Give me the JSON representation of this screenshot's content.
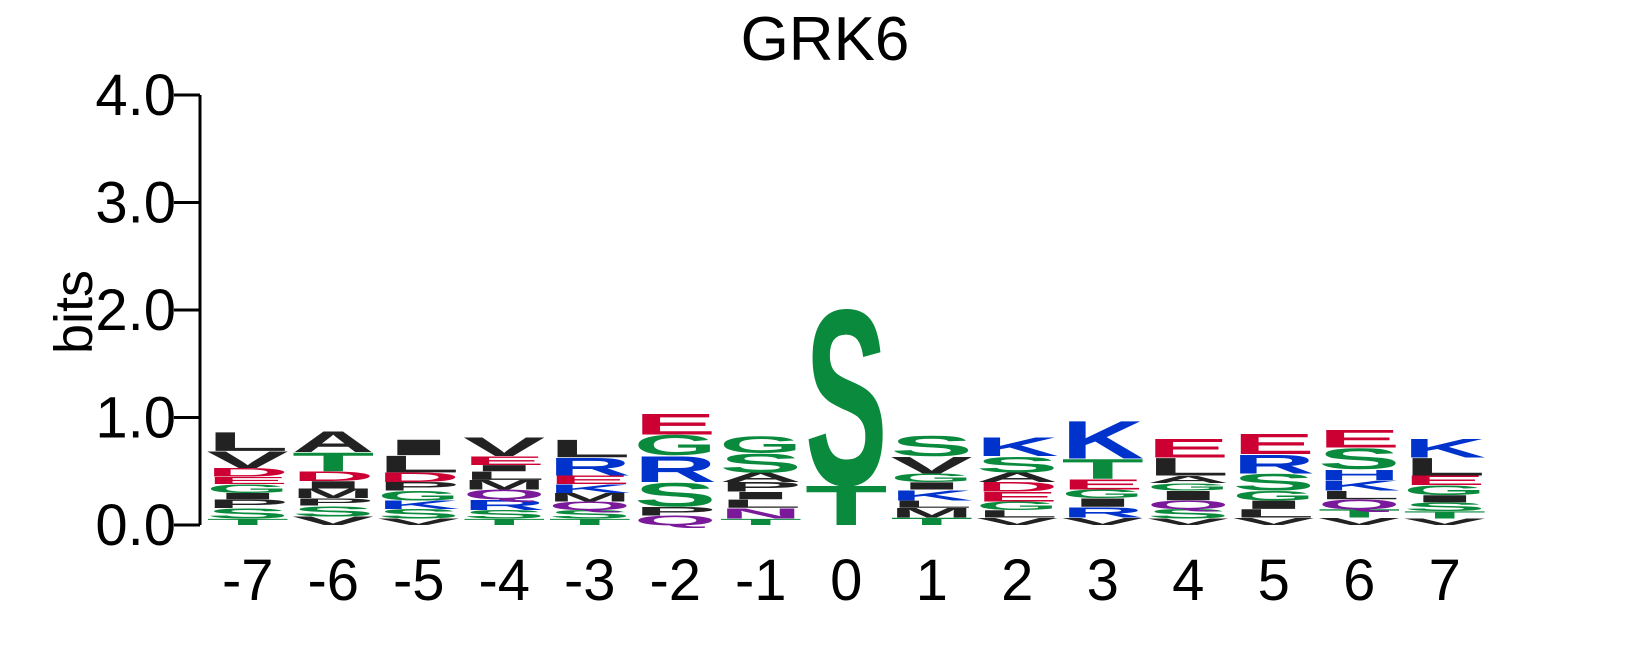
{
  "chart_data": {
    "type": "sequence-logo",
    "title": "GRK6",
    "ylabel": "bits",
    "ylim": [
      0,
      4
    ],
    "yticks": [
      "0.0",
      "1.0",
      "2.0",
      "3.0",
      "4.0"
    ],
    "yticks_values": [
      0,
      1,
      2,
      3,
      4
    ],
    "positions": [
      "-7",
      "-6",
      "-5",
      "-4",
      "-3",
      "-2",
      "-1",
      "0",
      "1",
      "2",
      "3",
      "4",
      "5",
      "6",
      "7"
    ],
    "colors": {
      "hydrophobic": "#222222",
      "polar": "#0a8a3c",
      "basic": "#0033cc",
      "acidic": "#cc0033",
      "amide": "#7a1a9a"
    },
    "columns": [
      [
        [
          "T",
          0.06
        ],
        [
          "S",
          0.1
        ],
        [
          "P",
          0.08
        ],
        [
          "I",
          0.06
        ],
        [
          "G",
          0.08
        ],
        [
          "E",
          0.07
        ],
        [
          "D",
          0.08
        ],
        [
          "V",
          0.16
        ],
        [
          "L",
          0.18
        ]
      ],
      [
        [
          "V",
          0.08
        ],
        [
          "S",
          0.1
        ],
        [
          "P",
          0.07
        ],
        [
          "M",
          0.09
        ],
        [
          "I",
          0.07
        ],
        [
          "D",
          0.09
        ],
        [
          "T",
          0.18
        ],
        [
          "A",
          0.2
        ]
      ],
      [
        [
          "V",
          0.06
        ],
        [
          "S",
          0.09
        ],
        [
          "K",
          0.08
        ],
        [
          "G",
          0.09
        ],
        [
          "P",
          0.08
        ],
        [
          "D",
          0.09
        ],
        [
          "L",
          0.16
        ],
        [
          "I",
          0.15
        ]
      ],
      [
        [
          "T",
          0.06
        ],
        [
          "S",
          0.08
        ],
        [
          "R",
          0.1
        ],
        [
          "Q",
          0.09
        ],
        [
          "M",
          0.09
        ],
        [
          "L",
          0.08
        ],
        [
          "I",
          0.06
        ],
        [
          "E",
          0.08
        ],
        [
          "V",
          0.18
        ]
      ],
      [
        [
          "T",
          0.06
        ],
        [
          "S",
          0.08
        ],
        [
          "Q",
          0.08
        ],
        [
          "M",
          0.08
        ],
        [
          "K",
          0.08
        ],
        [
          "E",
          0.08
        ],
        [
          "R",
          0.17
        ],
        [
          "L",
          0.17
        ]
      ],
      [
        [
          "Q",
          0.09
        ],
        [
          "P",
          0.08
        ],
        [
          "S",
          0.23
        ],
        [
          "R",
          0.25
        ],
        [
          "G",
          0.19
        ],
        [
          "E",
          0.2
        ]
      ],
      [
        [
          "T",
          0.06
        ],
        [
          "N",
          0.1
        ],
        [
          "L",
          0.08
        ],
        [
          "I",
          0.07
        ],
        [
          "P",
          0.09
        ],
        [
          "A",
          0.09
        ],
        [
          "S",
          0.18
        ],
        [
          "G",
          0.16
        ]
      ],
      [
        [
          "T",
          0.38
        ],
        [
          "S",
          1.68
        ]
      ],
      [
        [
          "T",
          0.07
        ],
        [
          "M",
          0.09
        ],
        [
          "L",
          0.07
        ],
        [
          "K",
          0.1
        ],
        [
          "I",
          0.07
        ],
        [
          "G",
          0.08
        ],
        [
          "V",
          0.16
        ],
        [
          "S",
          0.19
        ]
      ],
      [
        [
          "V",
          0.07
        ],
        [
          "L",
          0.07
        ],
        [
          "G",
          0.08
        ],
        [
          "E",
          0.09
        ],
        [
          "D",
          0.09
        ],
        [
          "A",
          0.09
        ],
        [
          "S",
          0.15
        ],
        [
          "K",
          0.18
        ]
      ],
      [
        [
          "V",
          0.07
        ],
        [
          "R",
          0.1
        ],
        [
          "I",
          0.08
        ],
        [
          "G",
          0.08
        ],
        [
          "E",
          0.1
        ],
        [
          "T",
          0.19
        ],
        [
          "K",
          0.36
        ]
      ],
      [
        [
          "V",
          0.06
        ],
        [
          "S",
          0.09
        ],
        [
          "Q",
          0.08
        ],
        [
          "I",
          0.09
        ],
        [
          "G",
          0.07
        ],
        [
          "A",
          0.07
        ],
        [
          "L",
          0.17
        ],
        [
          "E",
          0.18
        ]
      ],
      [
        [
          "V",
          0.07
        ],
        [
          "L",
          0.08
        ],
        [
          "I",
          0.08
        ],
        [
          "G",
          0.09
        ],
        [
          "S",
          0.16
        ],
        [
          "R",
          0.18
        ],
        [
          "E",
          0.19
        ]
      ],
      [
        [
          "V",
          0.07
        ],
        [
          "T",
          0.08
        ],
        [
          "Q",
          0.09
        ],
        [
          "L",
          0.08
        ],
        [
          "K",
          0.1
        ],
        [
          "H",
          0.1
        ],
        [
          "S",
          0.2
        ],
        [
          "E",
          0.17
        ]
      ],
      [
        [
          "V",
          0.06
        ],
        [
          "T",
          0.07
        ],
        [
          "S",
          0.08
        ],
        [
          "I",
          0.07
        ],
        [
          "G",
          0.09
        ],
        [
          "E",
          0.09
        ],
        [
          "L",
          0.17
        ],
        [
          "K",
          0.18
        ]
      ]
    ]
  }
}
